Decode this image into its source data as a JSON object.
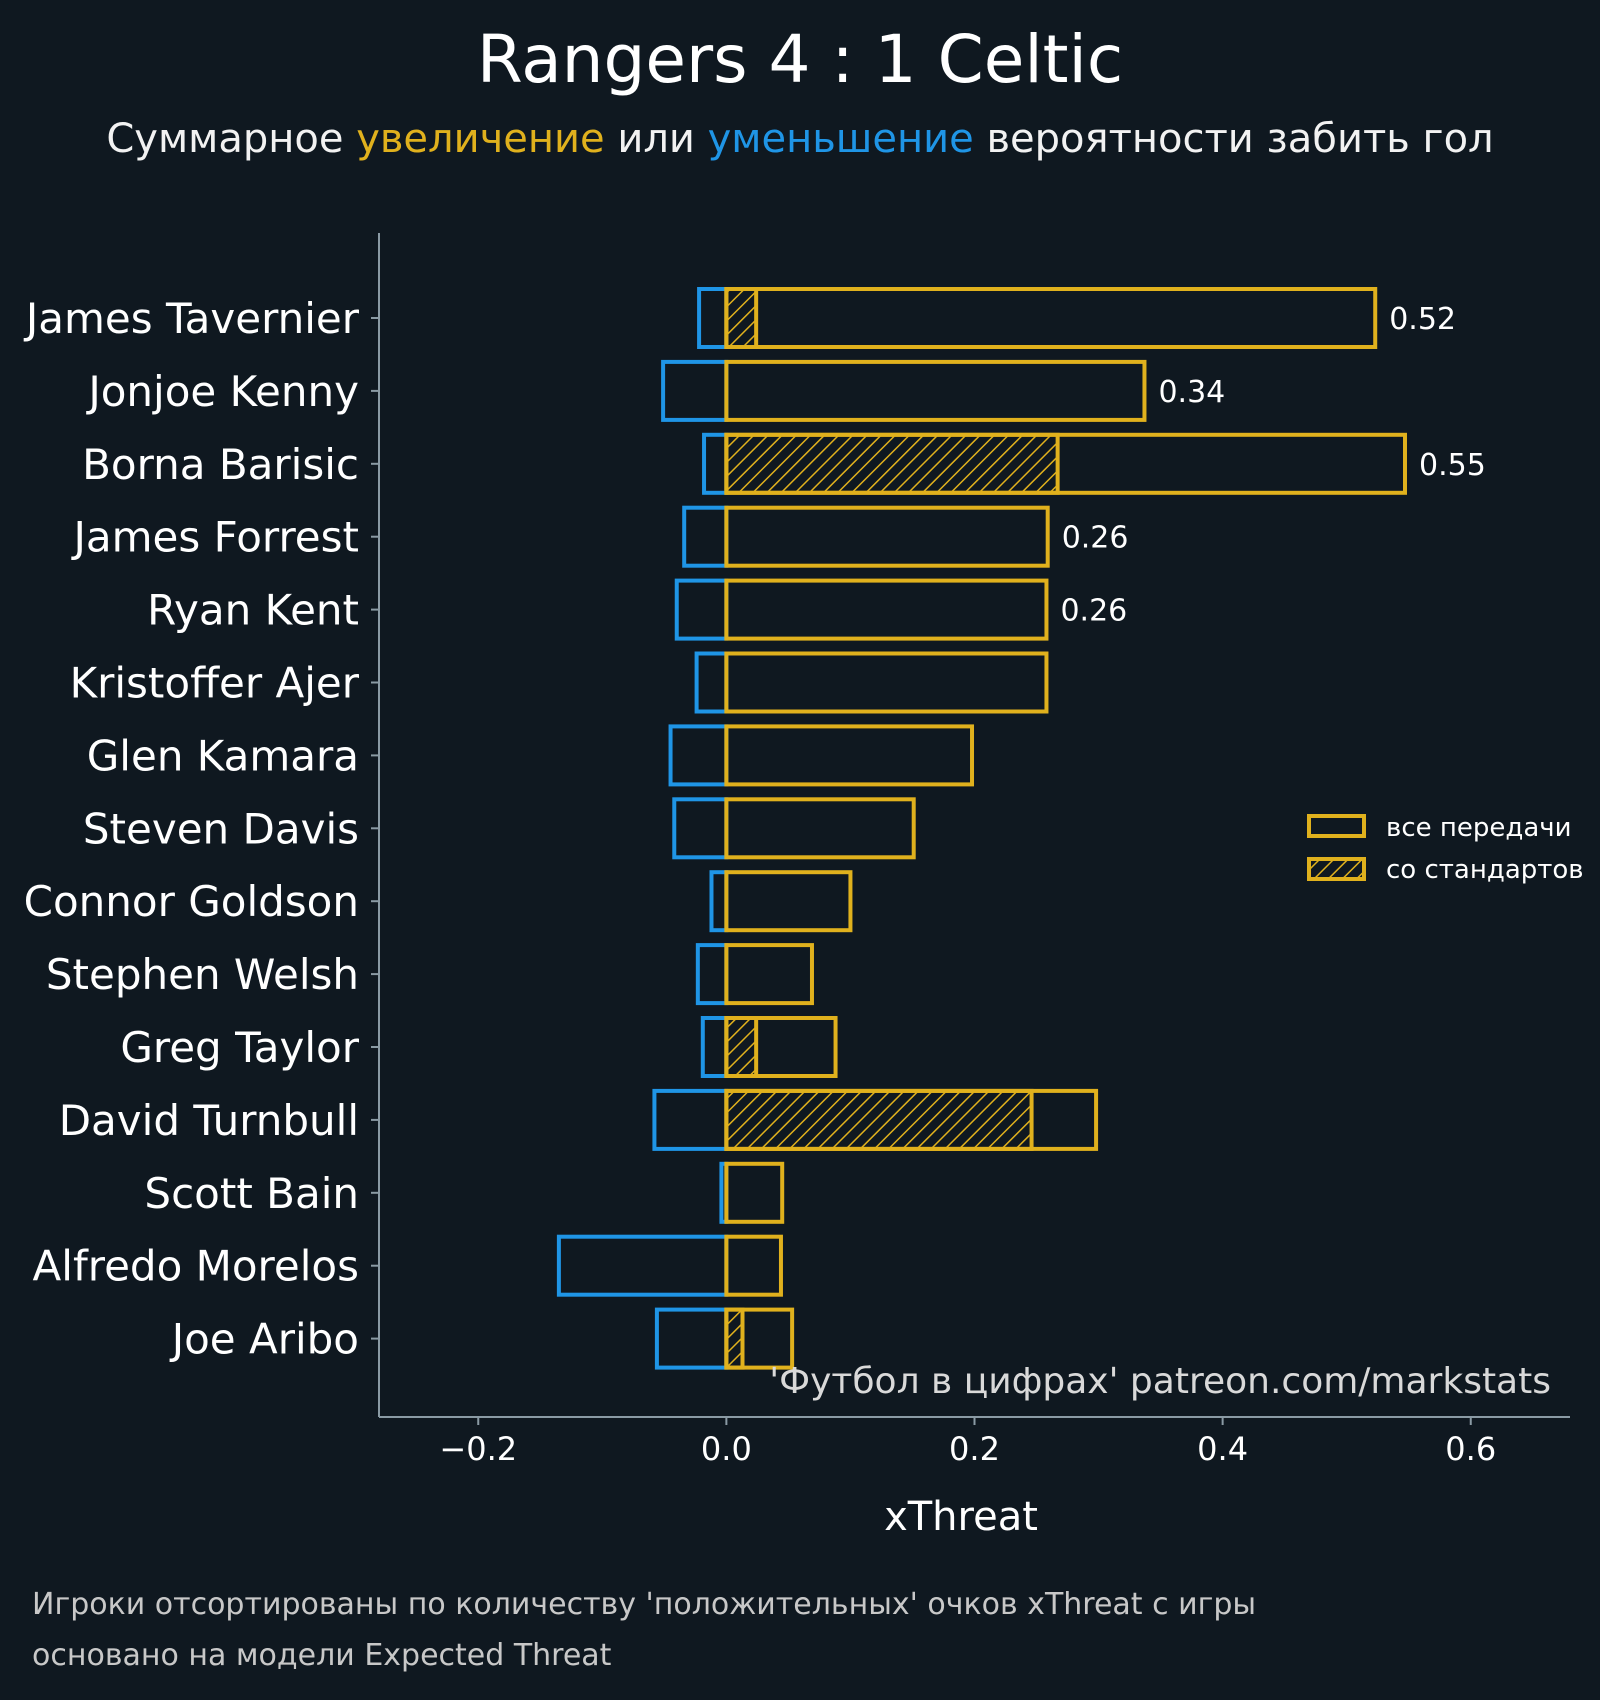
{
  "chart_data": {
    "type": "bar",
    "orientation": "horizontal",
    "title": "Rangers 4 : 1 Celtic",
    "subtitle": {
      "part1": "Суммарное ",
      "positive_word": "увеличение",
      "part2": " или ",
      "negative_word": "уменьшение",
      "part3": " вероятности забить гол"
    },
    "xlabel": "xThreat",
    "xlim": [
      -0.28,
      0.68
    ],
    "xticks": [
      -0.2,
      0.0,
      0.2,
      0.4,
      0.6
    ],
    "xtick_labels": [
      "−0.2",
      "0.0",
      "0.2",
      "0.4",
      "0.6"
    ],
    "players": [
      "James Tavernier",
      "Jonjoe Kenny",
      "Borna Barisic",
      "James Forrest",
      "Ryan Kent",
      "Kristoffer Ajer",
      "Glen Kamara",
      "Steven Davis",
      "Connor Goldson",
      "Stephen Welsh",
      "Greg Taylor",
      "David Turnbull",
      "Scott Bain",
      "Alfredo Morelos",
      "Joe Aribo"
    ],
    "series": [
      {
        "name": "negative",
        "values": [
          -0.022,
          -0.051,
          -0.018,
          -0.034,
          -0.04,
          -0.024,
          -0.045,
          -0.042,
          -0.012,
          -0.023,
          -0.019,
          -0.058,
          -0.004,
          -0.135,
          -0.056
        ]
      },
      {
        "name": "все передачи",
        "values": [
          0.523,
          0.337,
          0.547,
          0.259,
          0.258,
          0.258,
          0.198,
          0.151,
          0.1,
          0.069,
          0.088,
          0.298,
          0.045,
          0.044,
          0.053
        ]
      },
      {
        "name": "со стандартов",
        "values": [
          0.024,
          0.0,
          0.267,
          0.0,
          0.0,
          0.0,
          0.0,
          0.0,
          0.0,
          0.0,
          0.024,
          0.246,
          0.0,
          0.0,
          0.013
        ]
      }
    ],
    "value_labels": [
      "0.52",
      "0.34",
      "0.55",
      "0.26",
      "0.26",
      "",
      "",
      "",
      "",
      "",
      "",
      "",
      "",
      "",
      ""
    ],
    "legend": {
      "position": "right",
      "items": [
        "все передачи",
        "со стандартов"
      ]
    },
    "watermark": "'Футбол в цифрах' patreon.com/markstats",
    "footnotes": [
      "Игроки отсортированы по количеству 'положительных' очков xThreat с игры",
      "основано на модели Expected Threat"
    ]
  },
  "colors": {
    "background": "#0f1820",
    "positive": "#e0b11d",
    "negative": "#1f95e6",
    "axis": "#8a9aa4"
  }
}
